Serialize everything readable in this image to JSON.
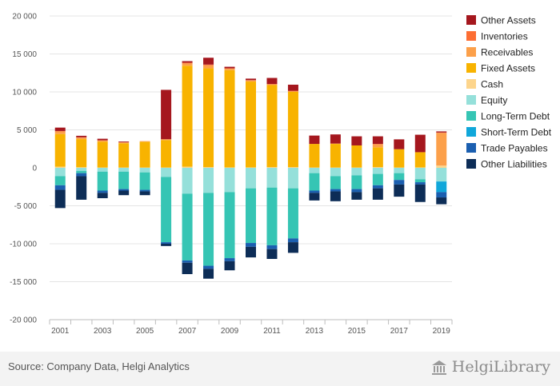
{
  "chart_data": {
    "type": "bar",
    "stacked": true,
    "title": "",
    "xlabel": "",
    "ylabel": "",
    "ylim": [
      -20000,
      20000
    ],
    "yticks": [
      20000,
      15000,
      10000,
      5000,
      0,
      -5000,
      -10000,
      -15000,
      -20000
    ],
    "ytick_labels": [
      "20 000",
      "15 000",
      "10 000",
      "5 000",
      "0",
      "-5 000",
      "-10 000",
      "-15 000",
      "-20 000"
    ],
    "categories": [
      "2001",
      "2002",
      "2003",
      "2004",
      "2005",
      "2006",
      "2007",
      "2008",
      "2009",
      "2010",
      "2011",
      "2012",
      "2013",
      "2014",
      "2015",
      "2016",
      "2017",
      "2018",
      "2019"
    ],
    "xtick_labels": [
      "2001",
      "2003",
      "2005",
      "2007",
      "2009",
      "2011",
      "2013",
      "2015",
      "2017",
      "2019"
    ],
    "grid": true,
    "legend_position": "right",
    "positive_series": [
      {
        "name": "Cash",
        "color": "#fdd58c",
        "values": [
          150,
          80,
          50,
          40,
          40,
          50,
          150,
          100,
          60,
          60,
          100,
          100,
          50,
          50,
          50,
          100,
          50,
          60,
          300
        ]
      },
      {
        "name": "Fixed Assets",
        "color": "#f8b300",
        "values": [
          4300,
          3700,
          3400,
          3200,
          3400,
          3600,
          13300,
          13000,
          12800,
          11300,
          10800,
          9900,
          3100,
          3100,
          2900,
          2600,
          2400,
          2000,
          0
        ]
      },
      {
        "name": "Receivables",
        "color": "#fca04a",
        "values": [
          350,
          200,
          150,
          100,
          60,
          100,
          300,
          400,
          200,
          150,
          100,
          100,
          0,
          50,
          0,
          400,
          0,
          0,
          4300
        ]
      },
      {
        "name": "Inventories",
        "color": "#fd6e33",
        "values": [
          50,
          40,
          30,
          20,
          20,
          20,
          100,
          100,
          50,
          40,
          40,
          50,
          0,
          0,
          0,
          50,
          0,
          0,
          50
        ]
      },
      {
        "name": "Other Assets",
        "color": "#a5171e",
        "values": [
          450,
          200,
          200,
          100,
          0,
          6500,
          200,
          900,
          200,
          200,
          800,
          800,
          1100,
          1200,
          1200,
          1000,
          1300,
          2300,
          150
        ]
      }
    ],
    "negative_series": [
      {
        "name": "Equity",
        "color": "#95e0da",
        "values": [
          -1100,
          -400,
          -500,
          -500,
          -600,
          -1200,
          -3400,
          -3300,
          -3200,
          -2700,
          -2600,
          -2700,
          -700,
          -1100,
          -1000,
          -800,
          -700,
          -1500,
          -1800
        ]
      },
      {
        "name": "Long-Term Debt",
        "color": "#36c5b4",
        "values": [
          -1200,
          -300,
          -2500,
          -2300,
          -2300,
          -8600,
          -8800,
          -9600,
          -8700,
          -7200,
          -7600,
          -6600,
          -2300,
          -1700,
          -1800,
          -1500,
          -900,
          -400,
          0
        ]
      },
      {
        "name": "Short-Term Debt",
        "color": "#10a7da",
        "values": [
          0,
          0,
          0,
          0,
          0,
          0,
          0,
          0,
          0,
          0,
          0,
          0,
          0,
          0,
          0,
          0,
          0,
          0,
          -1400
        ]
      },
      {
        "name": "Trade Payables",
        "color": "#1b5fb0",
        "values": [
          -600,
          -400,
          -300,
          -200,
          -200,
          -200,
          -300,
          -400,
          -400,
          -500,
          -500,
          -500,
          -300,
          -300,
          -400,
          -400,
          -600,
          -300,
          -700
        ]
      },
      {
        "name": "Other Liabilities",
        "color": "#0d2d57",
        "values": [
          -2400,
          -3100,
          -700,
          -600,
          -500,
          -300,
          -1500,
          -1300,
          -1200,
          -1400,
          -1300,
          -1400,
          -1000,
          -1300,
          -1000,
          -1500,
          -1600,
          -2300,
          -900
        ]
      }
    ],
    "legend": [
      "Other Assets",
      "Inventories",
      "Receivables",
      "Fixed Assets",
      "Cash",
      "Equity",
      "Long-Term Debt",
      "Short-Term Debt",
      "Trade Payables",
      "Other Liabilities"
    ]
  },
  "footer": {
    "source": "Source: Company Data, Helgi Analytics",
    "brand_text": "HelgiLibrary"
  }
}
